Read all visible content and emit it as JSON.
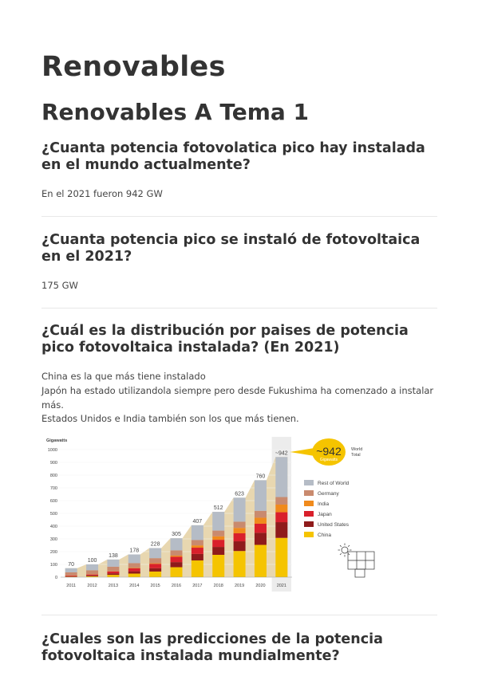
{
  "title": "Renovables",
  "subtitle": "Renovables A Tema 1",
  "sections": [
    {
      "question": "¿Cuanta potencia fotovolatica pico hay instalada en el mundo actualmente?",
      "answer": [
        "En el 2021 fueron 942 GW"
      ]
    },
    {
      "question": "¿Cuanta potencia pico se instaló de fotovoltaica en el 2021?",
      "answer": [
        "175 GW"
      ]
    },
    {
      "question": "¿Cuál es la distribución por paises de potencia pico fotovoltaica instalada? (En 2021)",
      "answer": [
        "China es la que más tiene instalado",
        "Japón ha estado utilizandola siempre pero desde Fukushima ha comenzado a instalar más.",
        "Estados Unidos e India también son los que más tienen."
      ]
    },
    {
      "question": "¿Cuales son las predicciones de la potencia fotovoltaica instalada mundialmente?",
      "answer": []
    }
  ],
  "chart_data": {
    "type": "bar",
    "ylabel": "Gigawatts",
    "ylim": [
      0,
      1000
    ],
    "yticks": [
      0,
      100,
      200,
      300,
      400,
      500,
      600,
      700,
      800,
      900,
      1000
    ],
    "categories": [
      "2011",
      "2012",
      "2013",
      "2014",
      "2015",
      "2016",
      "2017",
      "2018",
      "2019",
      "2020",
      "2021"
    ],
    "totals": [
      70,
      100,
      138,
      178,
      228,
      305,
      407,
      512,
      623,
      760,
      942
    ],
    "total_labels": [
      "70",
      "100",
      "138",
      "178",
      "228",
      "305",
      "407",
      "512",
      "623",
      "760",
      "~942"
    ],
    "series": [
      {
        "name": "China",
        "color": "#f5c400",
        "values": [
          3,
          7,
          18,
          28,
          44,
          78,
          131,
          175,
          205,
          253,
          308
        ]
      },
      {
        "name": "United States",
        "color": "#8f1b1b",
        "values": [
          4,
          7,
          12,
          18,
          26,
          40,
          51,
          62,
          76,
          95,
          123
        ]
      },
      {
        "name": "Japan",
        "color": "#d9202b",
        "values": [
          5,
          7,
          14,
          23,
          34,
          42,
          49,
          56,
          63,
          71,
          78
        ]
      },
      {
        "name": "India",
        "color": "#f08a1c",
        "values": [
          1,
          1,
          2,
          3,
          5,
          9,
          18,
          27,
          42,
          47,
          60
        ]
      },
      {
        "name": "Germany",
        "color": "#c98a6e",
        "values": [
          25,
          32,
          36,
          38,
          40,
          41,
          42,
          45,
          49,
          54,
          59
        ]
      },
      {
        "name": "Rest of World",
        "color": "#b5bcc6",
        "values": [
          32,
          46,
          56,
          68,
          79,
          95,
          116,
          147,
          188,
          240,
          314
        ]
      }
    ],
    "legend_position": "right",
    "callout": {
      "value": "~942",
      "unit": "Gigawatts",
      "label": "World Total"
    }
  }
}
